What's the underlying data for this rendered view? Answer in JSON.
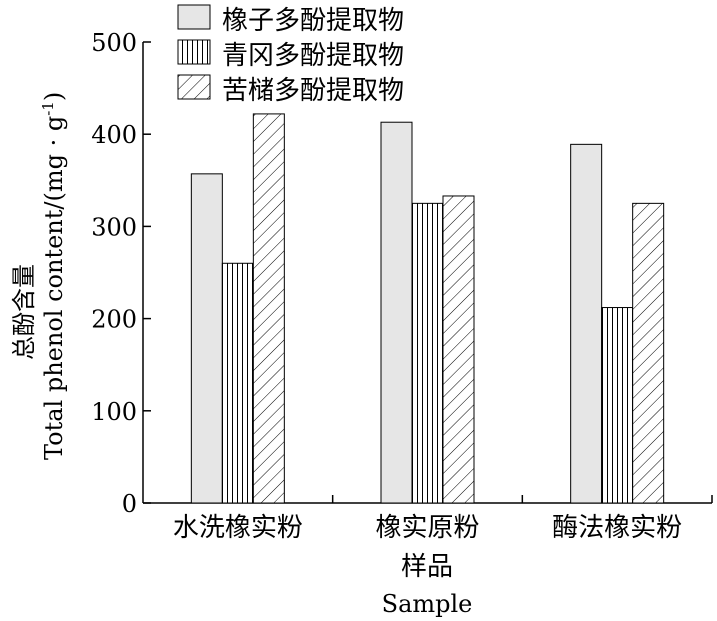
{
  "chart_data": {
    "type": "bar",
    "categories": [
      "水洗橡实粉",
      "橡实原粉",
      "酶法橡实粉"
    ],
    "series": [
      {
        "name": "橡子多酚提取物",
        "values": [
          357,
          413,
          389
        ],
        "pattern": "light-gray-fill"
      },
      {
        "name": "青冈多酚提取物",
        "values": [
          260,
          325,
          212
        ],
        "pattern": "vertical-lines"
      },
      {
        "name": "苦槠多酚提取物",
        "values": [
          422,
          333,
          325
        ],
        "pattern": "diagonal-hatch"
      }
    ],
    "xlabel_cn": "样品",
    "xlabel_en": "Sample",
    "ylabel_cn": "总酚含量",
    "ylabel_en": "Total phenol content/(mg · g",
    "ylabel_unit_sup": "-1",
    "ylabel_close": ")",
    "ylim": [
      0,
      500
    ],
    "yticks": [
      "0",
      "100",
      "200",
      "300",
      "400",
      "500"
    ],
    "legend_position": "top-left",
    "grid": false,
    "colors": {
      "fill": "#e6e6e6",
      "stroke": "#000000"
    }
  }
}
